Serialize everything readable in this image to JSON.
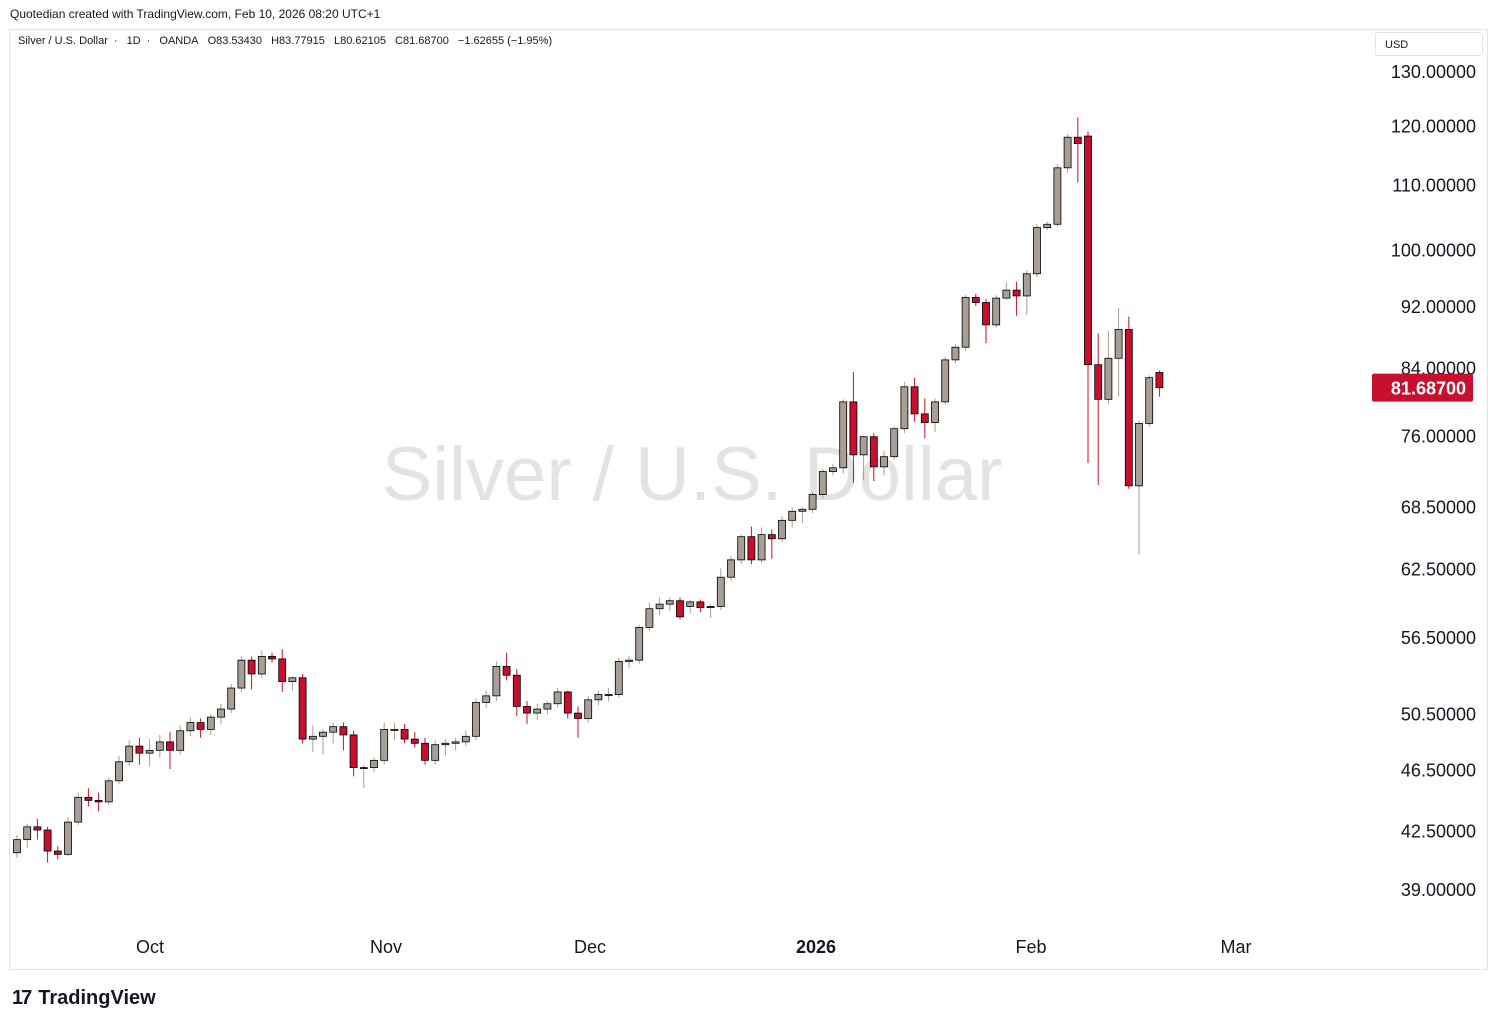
{
  "credit": "Quotedian created with TradingView.com, Feb 10, 2026 08:20 UTC+1",
  "symbol": {
    "name": "Silver / U.S. Dollar",
    "interval": "1D",
    "source": "OANDA",
    "open": "O83.53430",
    "high": "H83.77915",
    "low": "L80.62105",
    "close": "C81.68700",
    "change": "−1.62655 (−1.95%)"
  },
  "currency": "USD",
  "watermark": "Silver / U.S. Dollar",
  "brand": "TradingView",
  "colors": {
    "up": "#a79e96",
    "down": "#c8102e",
    "last_price": "#c8102e"
  },
  "chart_data": {
    "type": "candlestick",
    "y_scale": "log",
    "ylim": [
      37.5,
      133
    ],
    "y_ticks": [
      "39.00000",
      "42.50000",
      "46.50000",
      "50.50000",
      "56.50000",
      "62.50000",
      "68.50000",
      "76.00000",
      "84.00000",
      "92.00000",
      "100.00000",
      "110.00000",
      "120.00000",
      "130.00000"
    ],
    "x_ticks": [
      "Oct",
      "Nov",
      "Dec",
      "2026",
      "Feb",
      "Mar"
    ],
    "last_price_label": "81.68700",
    "candles": [
      {
        "o": 41.2,
        "h": 42.3,
        "l": 40.9,
        "c": 42.0
      },
      {
        "o": 42.0,
        "h": 43.0,
        "l": 41.5,
        "c": 42.8
      },
      {
        "o": 42.8,
        "h": 43.3,
        "l": 42.0,
        "c": 42.6
      },
      {
        "o": 42.6,
        "h": 42.8,
        "l": 40.6,
        "c": 41.3
      },
      {
        "o": 41.3,
        "h": 41.6,
        "l": 40.8,
        "c": 41.1
      },
      {
        "o": 41.1,
        "h": 43.4,
        "l": 41.0,
        "c": 43.1
      },
      {
        "o": 43.1,
        "h": 45.0,
        "l": 42.9,
        "c": 44.7
      },
      {
        "o": 44.7,
        "h": 45.3,
        "l": 44.1,
        "c": 44.5
      },
      {
        "o": 44.5,
        "h": 45.0,
        "l": 43.8,
        "c": 44.4
      },
      {
        "o": 44.4,
        "h": 46.0,
        "l": 44.2,
        "c": 45.8
      },
      {
        "o": 45.8,
        "h": 47.5,
        "l": 45.6,
        "c": 47.1
      },
      {
        "o": 47.1,
        "h": 48.6,
        "l": 46.8,
        "c": 48.2
      },
      {
        "o": 48.2,
        "h": 48.8,
        "l": 46.9,
        "c": 47.7
      },
      {
        "o": 47.7,
        "h": 48.7,
        "l": 46.8,
        "c": 47.9
      },
      {
        "o": 47.9,
        "h": 49.0,
        "l": 47.4,
        "c": 48.5
      },
      {
        "o": 48.5,
        "h": 49.2,
        "l": 46.6,
        "c": 47.9
      },
      {
        "o": 47.9,
        "h": 49.7,
        "l": 47.6,
        "c": 49.3
      },
      {
        "o": 49.3,
        "h": 50.3,
        "l": 48.9,
        "c": 49.9
      },
      {
        "o": 49.9,
        "h": 50.2,
        "l": 48.8,
        "c": 49.4
      },
      {
        "o": 49.4,
        "h": 50.5,
        "l": 49.0,
        "c": 50.3
      },
      {
        "o": 50.3,
        "h": 51.3,
        "l": 49.8,
        "c": 50.9
      },
      {
        "o": 50.9,
        "h": 52.8,
        "l": 50.6,
        "c": 52.5
      },
      {
        "o": 52.5,
        "h": 55.0,
        "l": 52.2,
        "c": 54.7
      },
      {
        "o": 54.7,
        "h": 55.0,
        "l": 52.4,
        "c": 53.6
      },
      {
        "o": 53.6,
        "h": 55.5,
        "l": 53.3,
        "c": 55.0
      },
      {
        "o": 55.0,
        "h": 55.3,
        "l": 54.5,
        "c": 54.8
      },
      {
        "o": 54.8,
        "h": 55.6,
        "l": 52.2,
        "c": 53.0
      },
      {
        "o": 53.0,
        "h": 53.4,
        "l": 52.3,
        "c": 53.3
      },
      {
        "o": 53.3,
        "h": 53.6,
        "l": 48.4,
        "c": 48.7
      },
      {
        "o": 48.7,
        "h": 49.7,
        "l": 47.8,
        "c": 48.9
      },
      {
        "o": 48.9,
        "h": 49.4,
        "l": 47.6,
        "c": 49.2
      },
      {
        "o": 49.2,
        "h": 49.9,
        "l": 48.4,
        "c": 49.6
      },
      {
        "o": 49.6,
        "h": 49.9,
        "l": 47.9,
        "c": 49.0
      },
      {
        "o": 49.0,
        "h": 49.3,
        "l": 46.1,
        "c": 46.7
      },
      {
        "o": 46.7,
        "h": 46.9,
        "l": 45.3,
        "c": 46.7
      },
      {
        "o": 46.7,
        "h": 47.4,
        "l": 46.4,
        "c": 47.2
      },
      {
        "o": 47.2,
        "h": 49.9,
        "l": 46.9,
        "c": 49.4
      },
      {
        "o": 49.4,
        "h": 49.9,
        "l": 48.6,
        "c": 49.4
      },
      {
        "o": 49.4,
        "h": 49.8,
        "l": 48.4,
        "c": 48.7
      },
      {
        "o": 48.7,
        "h": 49.2,
        "l": 48.1,
        "c": 48.4
      },
      {
        "o": 48.4,
        "h": 48.8,
        "l": 46.9,
        "c": 47.2
      },
      {
        "o": 47.2,
        "h": 48.6,
        "l": 46.9,
        "c": 48.3
      },
      {
        "o": 48.3,
        "h": 48.7,
        "l": 47.5,
        "c": 48.4
      },
      {
        "o": 48.4,
        "h": 48.8,
        "l": 47.9,
        "c": 48.5
      },
      {
        "o": 48.5,
        "h": 49.3,
        "l": 48.2,
        "c": 48.9
      },
      {
        "o": 48.9,
        "h": 51.7,
        "l": 48.6,
        "c": 51.4
      },
      {
        "o": 51.4,
        "h": 52.3,
        "l": 51.0,
        "c": 51.9
      },
      {
        "o": 51.9,
        "h": 54.6,
        "l": 51.5,
        "c": 54.2
      },
      {
        "o": 54.2,
        "h": 55.3,
        "l": 53.1,
        "c": 53.5
      },
      {
        "o": 53.5,
        "h": 54.0,
        "l": 50.4,
        "c": 51.1
      },
      {
        "o": 51.1,
        "h": 51.5,
        "l": 49.8,
        "c": 50.6
      },
      {
        "o": 50.6,
        "h": 51.3,
        "l": 50.1,
        "c": 50.9
      },
      {
        "o": 50.9,
        "h": 51.5,
        "l": 50.5,
        "c": 51.3
      },
      {
        "o": 51.3,
        "h": 52.5,
        "l": 51.0,
        "c": 52.2
      },
      {
        "o": 52.2,
        "h": 52.3,
        "l": 50.2,
        "c": 50.6
      },
      {
        "o": 50.6,
        "h": 51.1,
        "l": 48.8,
        "c": 50.2
      },
      {
        "o": 50.2,
        "h": 51.9,
        "l": 49.9,
        "c": 51.6
      },
      {
        "o": 51.6,
        "h": 52.3,
        "l": 51.2,
        "c": 52.0
      },
      {
        "o": 52.0,
        "h": 52.5,
        "l": 51.5,
        "c": 52.0
      },
      {
        "o": 52.0,
        "h": 54.9,
        "l": 51.8,
        "c": 54.6
      },
      {
        "o": 54.6,
        "h": 55.0,
        "l": 54.1,
        "c": 54.7
      },
      {
        "o": 54.7,
        "h": 57.6,
        "l": 54.4,
        "c": 57.4
      },
      {
        "o": 57.4,
        "h": 59.5,
        "l": 57.1,
        "c": 59.0
      },
      {
        "o": 59.0,
        "h": 60.0,
        "l": 58.4,
        "c": 59.4
      },
      {
        "o": 59.4,
        "h": 60.0,
        "l": 58.8,
        "c": 59.7
      },
      {
        "o": 59.7,
        "h": 60.0,
        "l": 58.1,
        "c": 58.3
      },
      {
        "o": 59.2,
        "h": 59.8,
        "l": 58.6,
        "c": 59.6
      },
      {
        "o": 59.6,
        "h": 59.8,
        "l": 58.7,
        "c": 59.1
      },
      {
        "o": 59.1,
        "h": 59.4,
        "l": 58.2,
        "c": 59.2
      },
      {
        "o": 59.2,
        "h": 62.6,
        "l": 58.9,
        "c": 61.8
      },
      {
        "o": 61.8,
        "h": 63.8,
        "l": 61.4,
        "c": 63.4
      },
      {
        "o": 63.4,
        "h": 65.8,
        "l": 63.0,
        "c": 65.6
      },
      {
        "o": 65.6,
        "h": 66.6,
        "l": 63.0,
        "c": 63.4
      },
      {
        "o": 63.4,
        "h": 66.5,
        "l": 63.1,
        "c": 65.8
      },
      {
        "o": 65.8,
        "h": 66.3,
        "l": 63.5,
        "c": 65.4
      },
      {
        "o": 65.4,
        "h": 67.6,
        "l": 65.1,
        "c": 67.2
      },
      {
        "o": 67.2,
        "h": 68.5,
        "l": 66.5,
        "c": 68.1
      },
      {
        "o": 68.1,
        "h": 68.5,
        "l": 66.9,
        "c": 68.3
      },
      {
        "o": 68.3,
        "h": 70.1,
        "l": 67.9,
        "c": 69.8
      },
      {
        "o": 69.8,
        "h": 72.5,
        "l": 69.4,
        "c": 72.2
      },
      {
        "o": 72.2,
        "h": 73.0,
        "l": 71.8,
        "c": 72.6
      },
      {
        "o": 72.6,
        "h": 80.3,
        "l": 72.0,
        "c": 80.0
      },
      {
        "o": 80.0,
        "h": 83.6,
        "l": 71.0,
        "c": 74.0
      },
      {
        "o": 74.0,
        "h": 76.1,
        "l": 71.3,
        "c": 76.0
      },
      {
        "o": 76.0,
        "h": 76.4,
        "l": 71.2,
        "c": 72.7
      },
      {
        "o": 72.7,
        "h": 74.4,
        "l": 71.8,
        "c": 73.8
      },
      {
        "o": 73.8,
        "h": 77.2,
        "l": 73.5,
        "c": 76.9
      },
      {
        "o": 76.9,
        "h": 82.4,
        "l": 76.4,
        "c": 81.8
      },
      {
        "o": 81.8,
        "h": 82.9,
        "l": 77.7,
        "c": 78.6
      },
      {
        "o": 78.6,
        "h": 80.4,
        "l": 75.8,
        "c": 77.6
      },
      {
        "o": 77.6,
        "h": 80.4,
        "l": 76.5,
        "c": 80.0
      },
      {
        "o": 80.0,
        "h": 85.5,
        "l": 79.7,
        "c": 85.1
      },
      {
        "o": 85.1,
        "h": 87.1,
        "l": 84.7,
        "c": 86.7
      },
      {
        "o": 86.7,
        "h": 93.6,
        "l": 86.2,
        "c": 93.3
      },
      {
        "o": 93.3,
        "h": 93.8,
        "l": 92.1,
        "c": 92.6
      },
      {
        "o": 92.6,
        "h": 93.1,
        "l": 87.2,
        "c": 89.6
      },
      {
        "o": 89.6,
        "h": 93.6,
        "l": 89.2,
        "c": 93.2
      },
      {
        "o": 93.2,
        "h": 95.4,
        "l": 93.0,
        "c": 94.3
      },
      {
        "o": 94.3,
        "h": 95.5,
        "l": 90.8,
        "c": 93.5
      },
      {
        "o": 93.5,
        "h": 97.1,
        "l": 90.9,
        "c": 96.6
      },
      {
        "o": 96.6,
        "h": 103.9,
        "l": 96.1,
        "c": 103.4
      },
      {
        "o": 103.4,
        "h": 104.3,
        "l": 103.0,
        "c": 103.9
      },
      {
        "o": 103.9,
        "h": 113.5,
        "l": 103.5,
        "c": 112.9
      },
      {
        "o": 112.9,
        "h": 118.6,
        "l": 112.0,
        "c": 118.1
      },
      {
        "o": 118.1,
        "h": 121.6,
        "l": 110.5,
        "c": 117.0
      },
      {
        "o": 118.3,
        "h": 119.1,
        "l": 73.1,
        "c": 84.5
      },
      {
        "o": 84.5,
        "h": 88.5,
        "l": 70.8,
        "c": 80.3
      },
      {
        "o": 80.3,
        "h": 88.8,
        "l": 79.7,
        "c": 85.3
      },
      {
        "o": 85.3,
        "h": 91.9,
        "l": 80.6,
        "c": 89.0
      },
      {
        "o": 89.0,
        "h": 90.7,
        "l": 70.4,
        "c": 70.7
      },
      {
        "o": 70.7,
        "h": 77.8,
        "l": 63.9,
        "c": 77.5
      },
      {
        "o": 77.5,
        "h": 83.2,
        "l": 77.1,
        "c": 82.9
      },
      {
        "o": 83.53,
        "h": 83.78,
        "l": 80.62,
        "c": 81.687
      }
    ]
  }
}
